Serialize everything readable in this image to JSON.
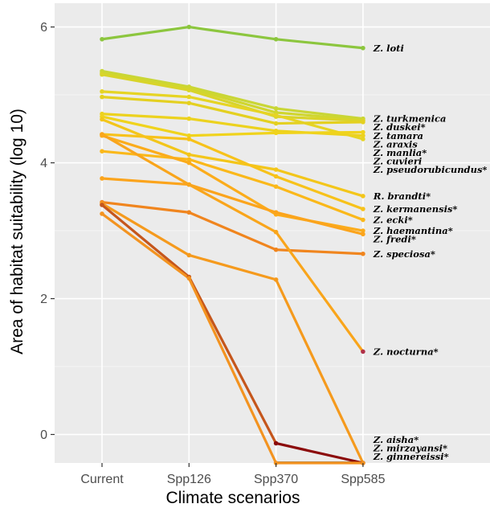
{
  "chart_data": {
    "type": "line",
    "title": "",
    "xlabel": "Climate scenarios",
    "ylabel": "Area of habitat suitability (log 10)",
    "categories": [
      "Current",
      "Spp126",
      "Spp370",
      "Spp585"
    ],
    "ylim": [
      -0.42,
      6.35
    ],
    "yticks": [
      0,
      2,
      4,
      6
    ],
    "grid": true,
    "legend": "none",
    "colors": {
      "panel": "#ebebeb",
      "grid_major": "#ffffff",
      "grid_minor": "#f4f4f4",
      "tick_text": "#4d4d4d",
      "axis_text": "#000000",
      "baseline": "#7f7f7f"
    },
    "series": [
      {
        "name": "Z. loti",
        "values": [
          5.82,
          6.0,
          5.82,
          5.69
        ],
        "color": "#8cc63e"
      },
      {
        "name": "Z. turkmenica",
        "values": [
          5.35,
          5.12,
          4.8,
          4.65
        ],
        "color": "#c9d636"
      },
      {
        "name": "Z. duskei*",
        "values": [
          5.32,
          5.1,
          4.74,
          4.63
        ],
        "color": "#d0d62e"
      },
      {
        "name": "Z. tamara",
        "values": [
          5.3,
          5.07,
          4.68,
          4.62
        ],
        "color": "#d8d42a"
      },
      {
        "name": "Z. pseudorubicundus*",
        "values": [
          5.05,
          4.97,
          4.7,
          4.35
        ],
        "color": "#e6d424"
      },
      {
        "name": "Z. araxis",
        "values": [
          4.97,
          4.88,
          4.58,
          4.6
        ],
        "color": "#e4d020"
      },
      {
        "name": "Z. cuvieri",
        "values": [
          4.72,
          4.65,
          4.47,
          4.4
        ],
        "color": "#ecd21e"
      },
      {
        "name": "Z. manlia*",
        "values": [
          4.68,
          4.4,
          4.44,
          4.45
        ],
        "color": "#f0d31c"
      },
      {
        "name": "R. brandti*",
        "values": [
          4.64,
          4.12,
          3.9,
          3.51
        ],
        "color": "#f3c61a"
      },
      {
        "name": "Z. kermanensis*",
        "values": [
          4.42,
          4.35,
          3.8,
          3.32
        ],
        "color": "#f7c21a"
      },
      {
        "name": "Z. ecki*",
        "values": [
          4.17,
          4.05,
          3.65,
          3.16
        ],
        "color": "#fab81a"
      },
      {
        "name": "Z. haemantina*",
        "values": [
          4.4,
          4.0,
          3.24,
          3.0
        ],
        "color": "#fbac1b"
      },
      {
        "name": "Z. fredi*",
        "values": [
          3.77,
          3.68,
          3.27,
          2.95
        ],
        "color": "#fba41c"
      },
      {
        "name": "Z. speciosa*",
        "values": [
          3.42,
          3.27,
          2.72,
          2.66
        ],
        "color": "#f0851e"
      },
      {
        "name": "Z. nocturna*",
        "values": [
          4.42,
          3.68,
          2.98,
          1.22
        ],
        "color": "#f9a51b",
        "end_color": "#b03048"
      },
      {
        "name": "Z. aisha*",
        "values": [
          3.4,
          2.64,
          2.28,
          -0.42
        ],
        "color": "#f59a1d"
      },
      {
        "name": "Z. mirzayansi*",
        "values": [
          3.38,
          2.32,
          -0.13,
          -0.42
        ],
        "color": "#c5561c",
        "end_color": "#8b0a0a"
      },
      {
        "name": "Z. ginnereissi*",
        "values": [
          3.25,
          2.3,
          -0.42,
          -0.42
        ],
        "color": "#f39320"
      }
    ]
  }
}
